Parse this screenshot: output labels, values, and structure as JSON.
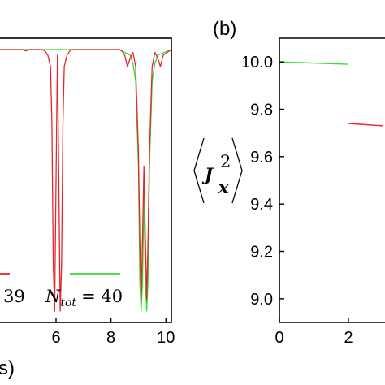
{
  "chart_data": [
    {
      "type": "line",
      "title": "",
      "panel_label": "",
      "xlabel": "s)",
      "ylabel": "",
      "xlim": [
        3.9,
        10.2
      ],
      "ylim": [
        0,
        1
      ],
      "x_ticks": [
        "6",
        "8",
        "10"
      ],
      "x_tick_values": [
        6,
        8,
        10
      ],
      "legend": [
        {
          "label_prefix": "",
          "label_value": "39",
          "color": "#e8242b"
        },
        {
          "label_prefix": "N",
          "label_sub": "tot",
          "label_value": "= 40",
          "color": "#33dd33"
        }
      ],
      "series": [
        {
          "color": "#e8242b",
          "x": [
            3.9,
            4.8,
            4.9,
            5.0,
            5.1,
            5.2,
            5.5,
            5.6,
            5.7,
            5.8,
            5.85,
            5.9,
            5.95,
            6.0,
            6.05,
            6.1,
            6.15,
            6.2,
            6.25,
            6.3,
            6.4,
            6.5,
            6.6,
            6.7,
            6.8,
            7.5,
            8.0,
            8.3,
            8.4,
            8.5,
            8.6,
            8.7,
            8.8,
            8.9,
            9.0,
            9.05,
            9.1,
            9.15,
            9.2,
            9.25,
            9.3,
            9.35,
            9.4,
            9.5,
            9.6,
            9.7,
            9.8,
            9.9,
            10.2
          ],
          "y": [
            0.96,
            0.96,
            0.955,
            0.96,
            0.96,
            0.96,
            0.96,
            0.955,
            0.94,
            0.9,
            0.7,
            0.2,
            0.04,
            0.5,
            0.94,
            0.5,
            0.04,
            0.2,
            0.7,
            0.9,
            0.94,
            0.955,
            0.96,
            0.96,
            0.96,
            0.96,
            0.96,
            0.96,
            0.955,
            0.94,
            0.9,
            0.93,
            0.95,
            0.9,
            0.6,
            0.3,
            0.08,
            0.3,
            0.55,
            0.3,
            0.08,
            0.3,
            0.6,
            0.9,
            0.95,
            0.93,
            0.9,
            0.94,
            0.96
          ]
        },
        {
          "color": "#33dd33",
          "x": [
            3.9,
            8.3,
            8.5,
            8.7,
            8.8,
            8.9,
            9.0,
            9.05,
            9.1,
            9.15,
            9.2,
            9.25,
            9.3,
            9.35,
            9.4,
            9.5,
            9.6,
            9.7,
            10.2
          ],
          "y": [
            0.96,
            0.96,
            0.95,
            0.94,
            0.91,
            0.85,
            0.55,
            0.15,
            0.04,
            0.15,
            0.45,
            0.15,
            0.04,
            0.15,
            0.55,
            0.85,
            0.91,
            0.94,
            0.96
          ]
        }
      ]
    },
    {
      "type": "line",
      "title": "",
      "panel_label": "(b)",
      "xlabel": "",
      "ylabel_main": "J",
      "ylabel_sub": "x",
      "ylabel_sup": "2",
      "xlim": [
        0,
        3.0
      ],
      "ylim": [
        8.9,
        10.1
      ],
      "x_ticks": [
        "0",
        "2"
      ],
      "x_tick_values": [
        0,
        2
      ],
      "y_ticks": [
        "9.0",
        "9.2",
        "9.4",
        "9.6",
        "9.8",
        "10.0"
      ],
      "y_tick_values": [
        9.0,
        9.2,
        9.4,
        9.6,
        9.8,
        10.0
      ],
      "series": [
        {
          "color": "#33dd33",
          "x": [
            0.0,
            2.0
          ],
          "y": [
            10.0,
            9.99
          ]
        },
        {
          "color": "#e8242b",
          "x": [
            2.0,
            3.0
          ],
          "y": [
            9.74,
            9.73
          ]
        }
      ]
    }
  ]
}
